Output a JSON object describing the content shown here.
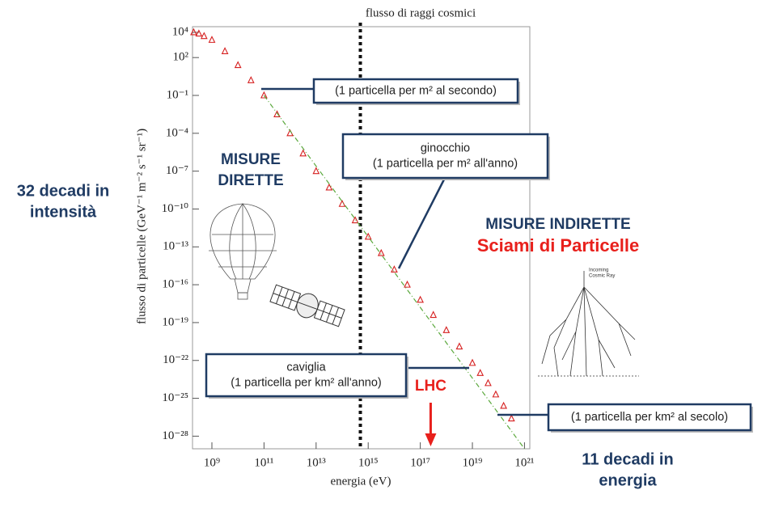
{
  "chart_data": {
    "type": "scatter",
    "title": "flusso di raggi cosmici",
    "x_label": "energia (eV)",
    "y_label": "flusso di particelle (GeV⁻¹ m⁻² s⁻¹ sr⁻¹)",
    "xlog": true,
    "ylog": true,
    "grid": false,
    "xlim": [
      180000000.0,
      1.6e+21
    ],
    "ylim": [
      28000.0,
      1e-29
    ],
    "xticks": [
      {
        "value": 1000000000.0,
        "label": "10⁹"
      },
      {
        "value": 100000000000.0,
        "label": "10¹¹"
      },
      {
        "value": 10000000000000.0,
        "label": "10¹³"
      },
      {
        "value": 1000000000000000.0,
        "label": "10¹⁵"
      },
      {
        "value": 1e+17,
        "label": "10¹⁷"
      },
      {
        "value": 1e+19,
        "label": "10¹⁹"
      },
      {
        "value": 1e+21,
        "label": "10²¹"
      }
    ],
    "yticks": [
      {
        "value": 10000.0,
        "label": "10⁴"
      },
      {
        "value": 100.0,
        "label": "10²"
      },
      {
        "value": 0.1,
        "label": "10⁻¹"
      },
      {
        "value": 0.0001,
        "label": "10⁻⁴"
      },
      {
        "value": 1e-07,
        "label": "10⁻⁷"
      },
      {
        "value": 1e-10,
        "label": "10⁻¹⁰"
      },
      {
        "value": 1e-13,
        "label": "10⁻¹³"
      },
      {
        "value": 1e-16,
        "label": "10⁻¹⁶"
      },
      {
        "value": 1e-19,
        "label": "10⁻¹⁹"
      },
      {
        "value": 1e-22,
        "label": "10⁻²²"
      },
      {
        "value": 1e-25,
        "label": "10⁻²⁵"
      },
      {
        "value": 1e-28,
        "label": "10⁻²⁸"
      }
    ],
    "series": [
      {
        "color": "#d62020",
        "x": [
          200000000.0,
          316000000.0,
          500000000.0,
          1000000000.0,
          3160000000.0,
          10000000000.0,
          31600000000.0,
          100000000000.0,
          316000000000.0,
          1000000000000.0,
          3160000000000.0,
          10000000000000.0,
          31600000000000.0,
          100000000000000.0,
          316000000000000.0,
          1000000000000000.0,
          3160000000000000.0,
          1e+16,
          3.16e+16,
          1e+17,
          3.16e+17,
          1e+18,
          3.16e+18,
          1e+19,
          2e+19,
          4e+19,
          7.9e+19,
          1.58e+20,
          3.16e+20
        ],
        "values": [
          10000.0,
          7900.0,
          5000.0,
          2500.0,
          316,
          25,
          1.58,
          0.1,
          0.00316,
          0.0001,
          2.5e-06,
          1e-07,
          5e-09,
          2.5e-10,
          1.26e-11,
          6.3e-13,
          3.16e-14,
          1.58e-15,
          1e-16,
          6.3e-18,
          4e-19,
          2.5e-20,
          1.26e-21,
          6.3e-23,
          1e-23,
          1.58e-24,
          2e-25,
          2.5e-26,
          2.5e-27
        ]
      },
      {
        "color": "#5aa83c",
        "line": true,
        "x": [
          100000000000.0,
          1e+21
        ],
        "values": [
          0.1,
          1e-29
        ]
      }
    ],
    "vline": {
      "value": 500000000000000.0
    },
    "lhc": {
      "value": 2.5e+17,
      "label": "LHC"
    },
    "annotations": [
      {
        "lines": [
          "(1 particella per m² al secondo)"
        ]
      },
      {
        "lines": [
          "ginocchio",
          "(1 particella per m² all'anno)"
        ]
      },
      {
        "lines": [
          "caviglia",
          "(1 particella per km² all'anno)"
        ]
      },
      {
        "lines": [
          "(1 particella per km² al secolo)"
        ]
      }
    ],
    "direct": [
      "MISURE",
      "DIRETTE"
    ],
    "indirect": "MISURE INDIRETTE",
    "showers": "Sciami di Particelle",
    "left_note": [
      "32 decadi in",
      "intensità"
    ],
    "right_note": [
      "11 decadi in",
      "energia"
    ],
    "shower_label": [
      "Incoming",
      "Cosmic Ray"
    ]
  }
}
